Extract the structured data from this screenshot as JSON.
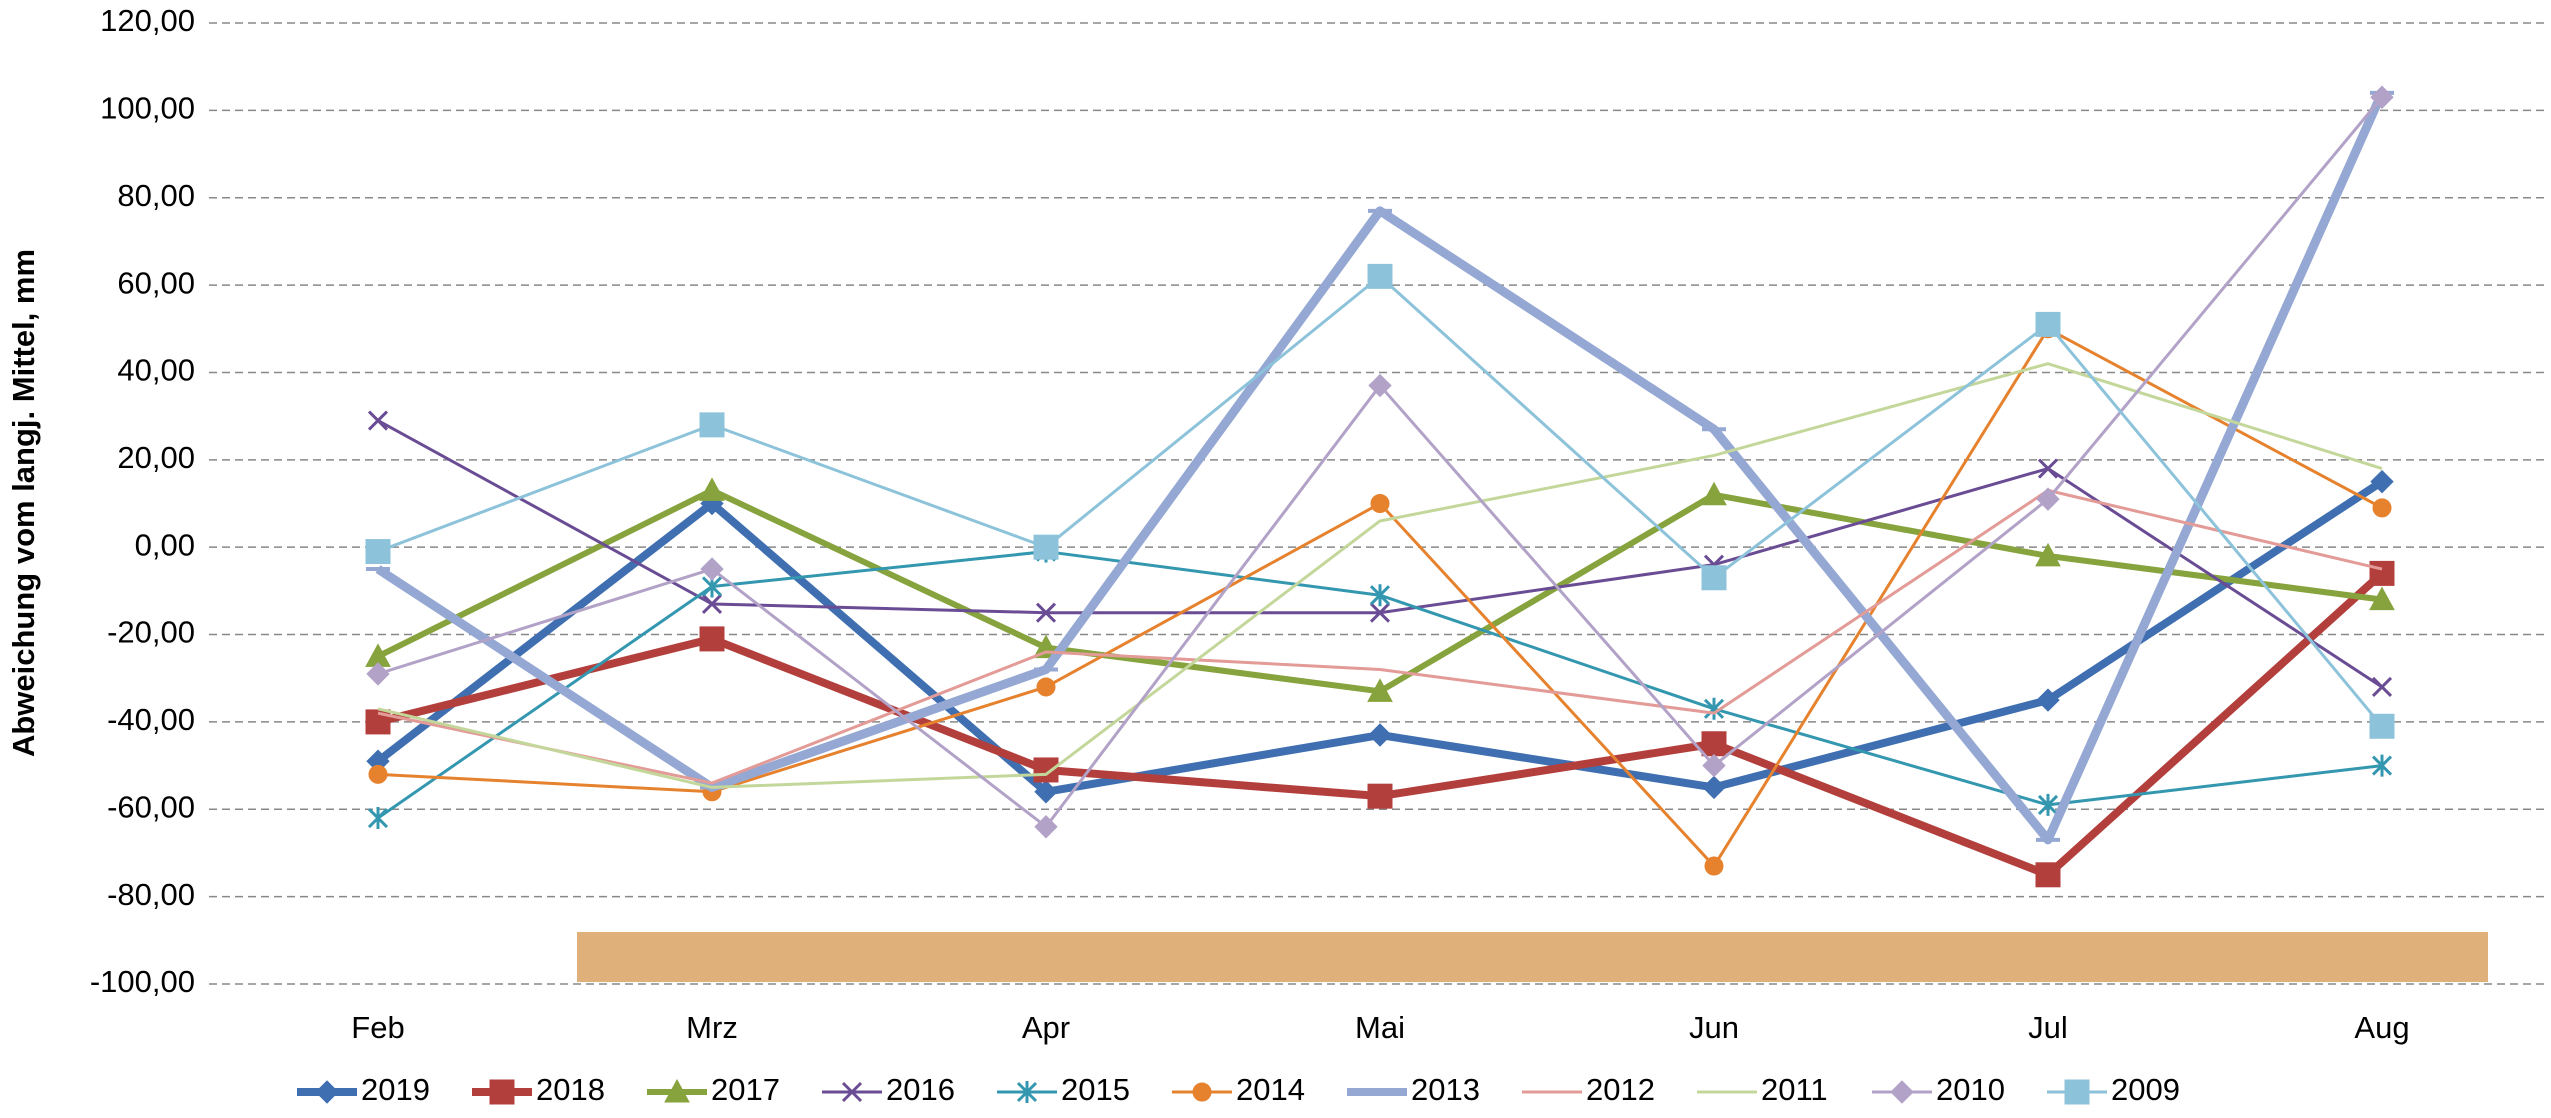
{
  "chart_data": {
    "type": "line",
    "y_label": "Abweichung vom langj. Mittel, mm",
    "categories": [
      "Feb",
      "Mrz",
      "Apr",
      "Mai",
      "Jun",
      "Jul",
      "Aug"
    ],
    "ylim": [
      -100,
      120
    ],
    "yticks": [
      {
        "value": -100,
        "label": "-100,00"
      },
      {
        "value": -80,
        "label": "-80,00"
      },
      {
        "value": -60,
        "label": "-60,00"
      },
      {
        "value": -40,
        "label": "-40,00"
      },
      {
        "value": -20,
        "label": "-20,00"
      },
      {
        "value": 0,
        "label": "0,00"
      },
      {
        "value": 20,
        "label": "20,00"
      },
      {
        "value": 40,
        "label": "40,00"
      },
      {
        "value": 60,
        "label": "60,00"
      },
      {
        "value": 80,
        "label": "80,00"
      },
      {
        "value": 100,
        "label": "100,00"
      },
      {
        "value": 120,
        "label": "120,00"
      }
    ],
    "grid": true,
    "legend": "bottom",
    "series": [
      {
        "name": "2019",
        "color": "#3f6fb0",
        "marker": "diamond",
        "values": [
          -49,
          10,
          -56,
          -43,
          -55,
          -35,
          15
        ]
      },
      {
        "name": "2018",
        "color": "#b33f3c",
        "marker": "square",
        "values": [
          -40,
          -21,
          -51,
          -57,
          -45,
          -75,
          -6
        ]
      },
      {
        "name": "2017",
        "color": "#86a33d",
        "marker": "triangle",
        "values": [
          -25,
          13,
          -23,
          -33,
          12,
          -2,
          -12
        ]
      },
      {
        "name": "2016",
        "color": "#6a4c94",
        "marker": "x",
        "values": [
          29,
          -13,
          -15,
          -15,
          -4,
          18,
          -32
        ]
      },
      {
        "name": "2015",
        "color": "#3497b0",
        "marker": "star",
        "values": [
          -62,
          -9,
          -1,
          -11,
          -37,
          -59,
          -50
        ]
      },
      {
        "name": "2014",
        "color": "#e6822e",
        "marker": "circle",
        "values": [
          -52,
          -56,
          -32,
          10,
          -73,
          50,
          9
        ]
      },
      {
        "name": "2013",
        "color": "#95a8d3",
        "marker": "dash",
        "values": [
          -5,
          -55,
          -28,
          77,
          27,
          -67,
          104
        ]
      },
      {
        "name": "2012",
        "color": "#e39b97",
        "marker": "none",
        "values": [
          -38,
          -54,
          -24,
          -28,
          -38,
          13,
          -5
        ]
      },
      {
        "name": "2011",
        "color": "#c4d79b",
        "marker": "none",
        "values": [
          -37,
          -55,
          -52,
          6,
          21,
          42,
          18
        ]
      },
      {
        "name": "2010",
        "color": "#b2a2c7",
        "marker": "diamond",
        "values": [
          -29,
          -5,
          -64,
          37,
          -50,
          11,
          103
        ]
      },
      {
        "name": "2009",
        "color": "#8dc3da",
        "marker": "square",
        "values": [
          -1,
          28,
          0,
          62,
          -7,
          51,
          -41
        ]
      }
    ]
  }
}
